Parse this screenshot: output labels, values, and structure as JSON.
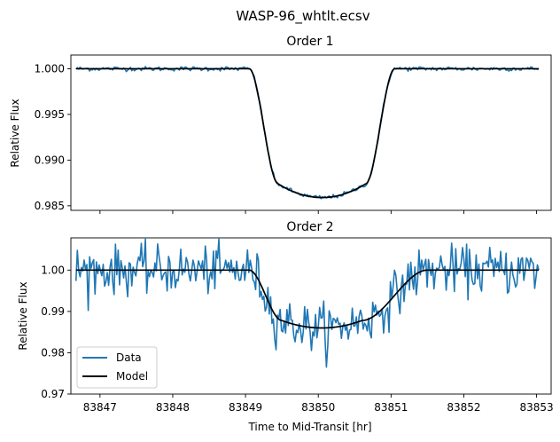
{
  "figure_title": "WASP-96_whtlt.ecsv",
  "chart_data": [
    {
      "type": "line",
      "title": "Order 1",
      "xlabel": "",
      "ylabel": "Relative Flux",
      "xlim": [
        83846.6,
        83853.2
      ],
      "ylim": [
        0.9845,
        1.0015
      ],
      "yticks": [
        0.985,
        0.99,
        0.995,
        1.0
      ],
      "ytick_labels": [
        "0.985",
        "0.990",
        "0.995",
        "1.000"
      ],
      "xticks": [
        83847,
        83848,
        83849,
        83850,
        83851,
        83852,
        83853
      ],
      "xtick_labels": [],
      "grid": false,
      "transit": {
        "t0": 83850.05,
        "ingress_start": 83849.05,
        "ingress_end": 83849.45,
        "egress_start": 83850.65,
        "egress_end": 83851.05,
        "depth_edge": 0.9874,
        "depth_center": 0.9859
      },
      "series": [
        {
          "name": "",
          "role": "data",
          "color": "#1f77b4",
          "noise": 0.00012,
          "x_start": 83846.67,
          "x_end": 83853.03
        },
        {
          "name": "",
          "role": "model",
          "color": "#000000",
          "x_start": 83846.67,
          "x_end": 83853.03
        }
      ]
    },
    {
      "type": "line",
      "title": "Order 2",
      "xlabel": "Time to Mid-Transit [hr]",
      "ylabel": "Relative Flux",
      "xlim": [
        83846.6,
        83853.2
      ],
      "ylim": [
        0.97,
        1.0078
      ],
      "yticks": [
        0.97,
        0.98,
        0.99,
        1.0
      ],
      "ytick_labels": [
        "0.97",
        "0.98",
        "0.99",
        "1.00"
      ],
      "xticks": [
        83847,
        83848,
        83849,
        83850,
        83851,
        83852,
        83853
      ],
      "xtick_labels": [
        "83847",
        "83848",
        "83849",
        "83850",
        "83851",
        "83852",
        "83853"
      ],
      "grid": false,
      "legend": {
        "placement": "lower-left",
        "entries": [
          {
            "label": "Data",
            "color": "#1f77b4"
          },
          {
            "label": "Model",
            "color": "#000000"
          }
        ]
      },
      "transit": {
        "t0": 83850.05,
        "ingress_start": 83849.05,
        "ingress_end": 83849.5,
        "egress_start": 83850.6,
        "egress_end": 83851.5,
        "depth_edge": 0.9878,
        "depth_center": 0.986
      },
      "series": [
        {
          "name": "Data",
          "role": "data",
          "color": "#1f77b4",
          "noise": 0.0028,
          "x_start": 83846.67,
          "x_end": 83853.03
        },
        {
          "name": "Model",
          "role": "model",
          "color": "#000000",
          "x_start": 83846.67,
          "x_end": 83853.03
        }
      ]
    }
  ]
}
